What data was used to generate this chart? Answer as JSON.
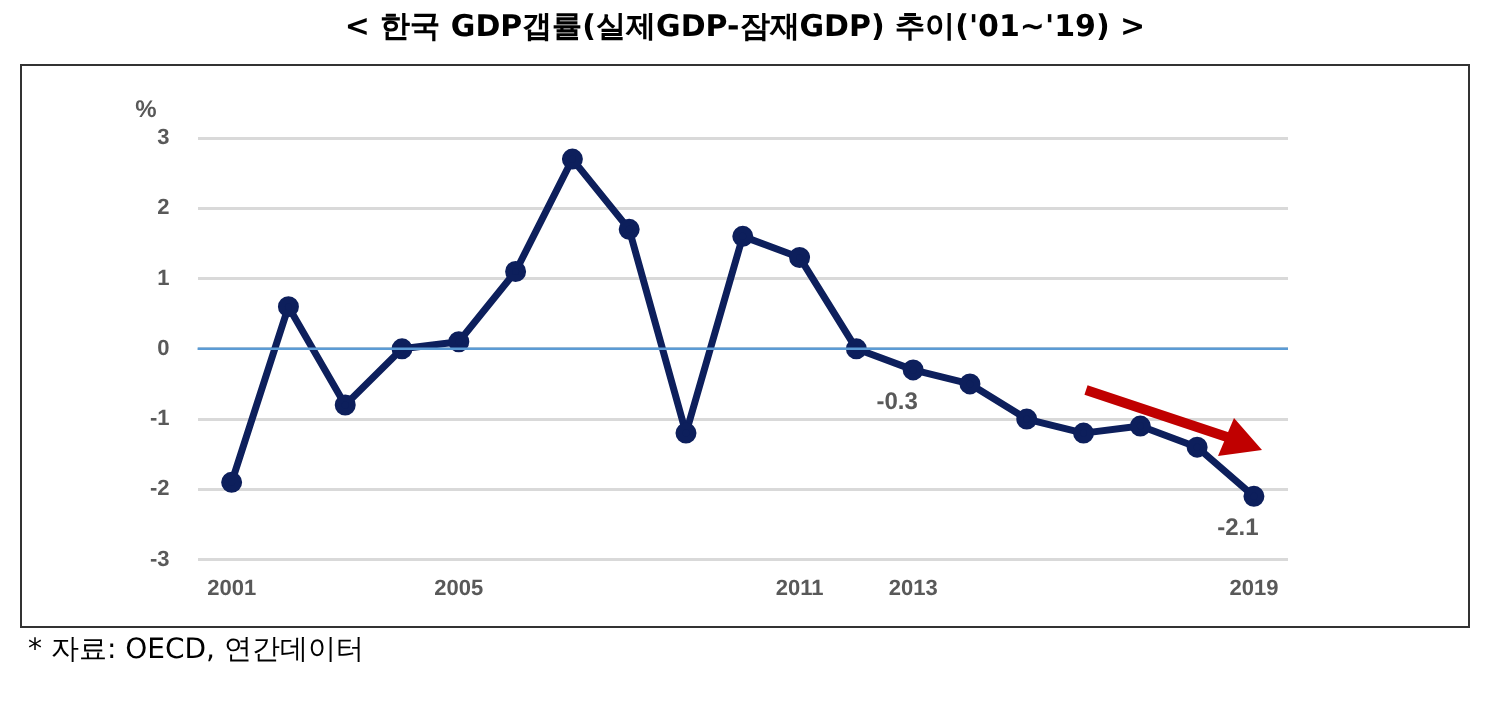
{
  "chart_data": {
    "type": "line",
    "title": "< 한국 GDP갭률(실제GDP-잠재GDP) 추이('01~'19) >",
    "ylabel": "%",
    "x": [
      2001,
      2002,
      2003,
      2004,
      2005,
      2006,
      2007,
      2008,
      2009,
      2010,
      2011,
      2012,
      2013,
      2014,
      2015,
      2016,
      2017,
      2018,
      2019
    ],
    "series": [
      {
        "color": "#0d1f5c",
        "values": [
          -1.9,
          0.6,
          -0.8,
          0.0,
          0.1,
          1.1,
          2.7,
          1.7,
          -1.2,
          1.6,
          1.3,
          0.0,
          -0.3,
          -0.5,
          -1.0,
          -1.2,
          -1.1,
          -1.4,
          -2.1
        ],
        "value_labels": [
          null,
          null,
          null,
          null,
          null,
          null,
          null,
          null,
          null,
          null,
          null,
          null,
          "-0.3",
          null,
          null,
          null,
          null,
          null,
          "-2.1"
        ]
      }
    ],
    "xlim": [
      2000.4,
      2019.6
    ],
    "xticks": [
      2001,
      2005,
      2011,
      2013,
      2019
    ],
    "ylim": [
      -3,
      3
    ],
    "yticks": [
      -3,
      -2,
      -1,
      0,
      1,
      2,
      3
    ],
    "grid": "y",
    "marker": "circle",
    "line_style": "solid",
    "legend": false,
    "ref_lines": [
      {
        "axis": "y",
        "value": 0,
        "color": "#5b9bd5"
      }
    ],
    "annotations": [
      "* 자료: OECD, 연간데이터"
    ]
  }
}
